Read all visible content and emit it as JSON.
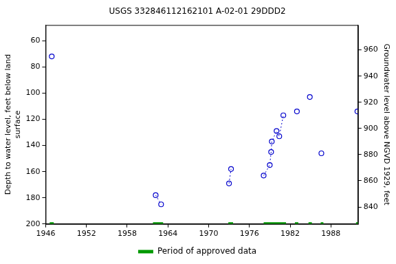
{
  "chart_data": {
    "type": "scatter",
    "title": "USGS 332846112162101 A-02-01 29DDD2",
    "y_label": [
      "Depth to water level, feet below land",
      "surface"
    ],
    "y2_label": "Groundwater level above NGVD 1929, feet",
    "xlim": [
      1946,
      1992
    ],
    "xticks": [
      1946,
      1952,
      1958,
      1964,
      1970,
      1976,
      1982,
      1988
    ],
    "ylim": [
      48,
      200
    ],
    "yticks": [
      60,
      80,
      100,
      120,
      140,
      160,
      180,
      200
    ],
    "y2lim": [
      827,
      979
    ],
    "y2ticks": [
      840,
      860,
      880,
      900,
      920,
      940,
      960
    ],
    "grid": false,
    "legend": "bottom",
    "series": [
      {
        "color": "#0000cc",
        "marker": "circle",
        "line_style": "dotted",
        "x": [
          1946.9
        ],
        "values": [
          72
        ]
      },
      {
        "color": "#0000cc",
        "marker": "circle",
        "line_style": "dotted",
        "x": [
          1962.2,
          1963.0
        ],
        "values": [
          178,
          185
        ]
      },
      {
        "color": "#0000cc",
        "marker": "circle",
        "line_style": "dotted",
        "x": [
          1973.0,
          1973.3
        ],
        "values": [
          169,
          158
        ]
      },
      {
        "color": "#0000cc",
        "marker": "circle",
        "line_style": "dotted",
        "x": [
          1978.1,
          1979.0,
          1979.2,
          1979.3,
          1980.0,
          1980.4,
          1981.0
        ],
        "values": [
          163,
          155,
          145,
          137,
          129,
          133,
          117
        ]
      },
      {
        "color": "#0000cc",
        "marker": "circle",
        "line_style": "dotted",
        "x": [
          1983.0
        ],
        "values": [
          114
        ]
      },
      {
        "color": "#0000cc",
        "marker": "circle",
        "line_style": "dotted",
        "x": [
          1984.9
        ],
        "values": [
          103
        ]
      },
      {
        "color": "#0000cc",
        "marker": "circle",
        "line_style": "dotted",
        "x": [
          1986.6
        ],
        "values": [
          146
        ]
      },
      {
        "color": "#0000cc",
        "marker": "circle",
        "line_style": "dotted",
        "x": [
          1991.9
        ],
        "values": [
          114
        ]
      }
    ],
    "approved": {
      "name": "Period of approved data",
      "color": "#009900",
      "level": 200,
      "periods": [
        [
          1946.6,
          1947.2
        ],
        [
          1961.8,
          1963.3
        ],
        [
          1972.9,
          1973.6
        ],
        [
          1978.1,
          1981.4
        ],
        [
          1982.7,
          1983.2
        ],
        [
          1984.7,
          1985.2
        ],
        [
          1986.5,
          1986.9
        ],
        [
          1991.7,
          1992
        ]
      ]
    }
  }
}
